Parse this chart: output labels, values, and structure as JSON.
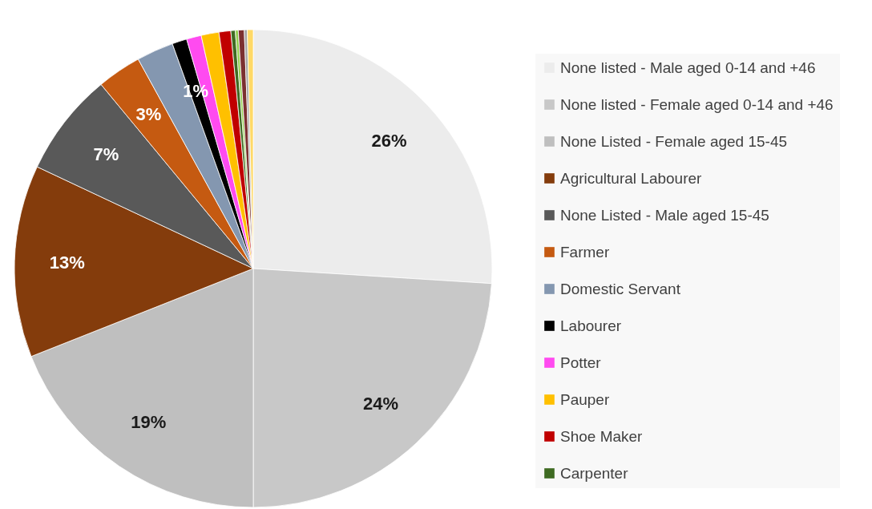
{
  "chart_data": {
    "type": "pie",
    "categories": [
      "None listed - Male aged 0-14 and +46",
      "None listed - Female aged 0-14 and +46",
      "None Listed - Female aged 15-45",
      "Agricultural Labourer",
      "None Listed - Male aged 15-45",
      "Farmer",
      "Domestic Servant",
      "Labourer",
      "Potter",
      "Pauper",
      "Shoe Maker",
      "Carpenter",
      null,
      null,
      null,
      null
    ],
    "values": [
      26,
      24,
      19,
      13,
      7,
      3,
      2.5,
      1,
      1,
      1.2,
      0.8,
      0.3,
      0.2,
      0.4,
      0.2,
      0.4
    ],
    "value_labels": [
      "26%",
      "24%",
      "19%",
      "13%",
      "7%",
      "3%",
      null,
      "1%",
      null,
      null,
      null,
      null,
      null,
      null,
      null,
      null
    ],
    "colors": [
      "#ececec",
      "#c8c8c8",
      "#bfbfbf",
      "#843c0c",
      "#595959",
      "#c55a11",
      "#8497b0",
      "#000000",
      "#ff4bf0",
      "#ffc000",
      "#c00000",
      "#3f6b22",
      "#92d050",
      "#7b3030",
      "#a5a5a5",
      "#ffd966"
    ],
    "legend": "right"
  }
}
